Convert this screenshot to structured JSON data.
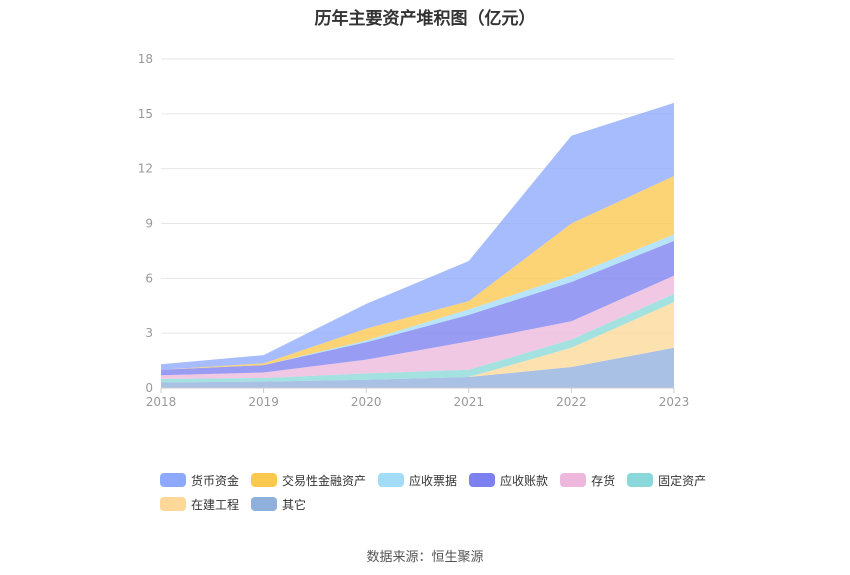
{
  "title": "历年主要资产堆积图（亿元）",
  "source": "数据来源：恒生聚源",
  "chart_data": {
    "type": "area",
    "stacked": true,
    "x": [
      "2018",
      "2019",
      "2020",
      "2021",
      "2022",
      "2023"
    ],
    "y_ticks": [
      "0",
      "3",
      "6",
      "9",
      "12",
      "15",
      "18"
    ],
    "ylim": [
      0,
      18
    ],
    "grid": true,
    "legend_position": "bottom",
    "series": [
      {
        "name": "其它",
        "color": "#8fb0dd",
        "values": [
          0.3,
          0.35,
          0.45,
          0.6,
          1.15,
          2.2
        ]
      },
      {
        "name": "在建工程",
        "color": "#fdd898",
        "values": [
          0.0,
          0.0,
          0.0,
          0.0,
          1.05,
          2.5
        ]
      },
      {
        "name": "固定资产",
        "color": "#8ad8d9",
        "values": [
          0.2,
          0.2,
          0.35,
          0.4,
          0.45,
          0.45
        ]
      },
      {
        "name": "存货",
        "color": "#edb8dc",
        "values": [
          0.2,
          0.3,
          0.75,
          1.55,
          1.0,
          1.0
        ]
      },
      {
        "name": "应收账款",
        "color": "#7c80f0",
        "values": [
          0.3,
          0.4,
          0.95,
          1.45,
          2.15,
          1.9
        ]
      },
      {
        "name": "应收票据",
        "color": "#a3dcf7",
        "values": [
          0.0,
          0.0,
          0.1,
          0.3,
          0.35,
          0.35
        ]
      },
      {
        "name": "交易性金融资产",
        "color": "#fdc84e",
        "values": [
          0.0,
          0.1,
          0.65,
          0.45,
          2.85,
          3.2
        ]
      },
      {
        "name": "货币资金",
        "color": "#8ea9fb",
        "values": [
          0.3,
          0.45,
          1.35,
          2.2,
          4.8,
          4.0
        ]
      }
    ]
  },
  "legend_order": [
    {
      "name": "货币资金",
      "color": "#8ea9fb"
    },
    {
      "name": "交易性金融资产",
      "color": "#fdc84e"
    },
    {
      "name": "应收票据",
      "color": "#a3dcf7"
    },
    {
      "name": "应收账款",
      "color": "#7c80f0"
    },
    {
      "name": "存货",
      "color": "#edb8dc"
    },
    {
      "name": "固定资产",
      "color": "#8ad8d9"
    },
    {
      "name": "在建工程",
      "color": "#fdd898"
    },
    {
      "name": "其它",
      "color": "#8fb0dd"
    }
  ]
}
